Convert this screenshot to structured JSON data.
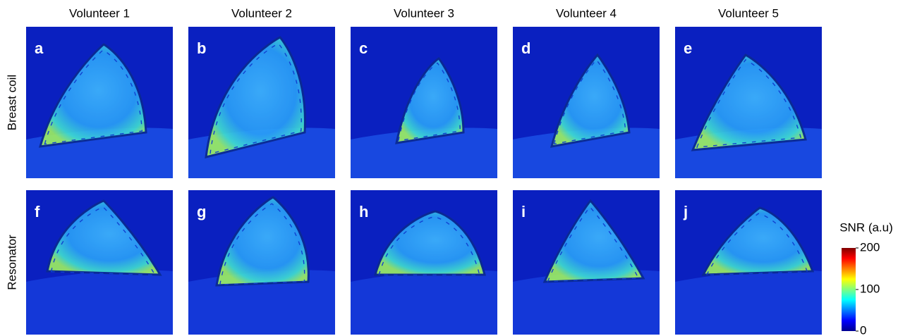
{
  "columns": [
    "Volunteer 1",
    "Volunteer 2",
    "Volunteer 3",
    "Volunteer 4",
    "Volunteer 5"
  ],
  "rows": [
    "Breast coil",
    "Resonator"
  ],
  "panels": [
    [
      "a",
      "b",
      "c",
      "d",
      "e"
    ],
    [
      "f",
      "g",
      "h",
      "i",
      "j"
    ]
  ],
  "colorbar": {
    "title": "SNR (a.u)",
    "range": [
      0,
      200
    ],
    "ticks": [
      0,
      100,
      200
    ]
  }
}
